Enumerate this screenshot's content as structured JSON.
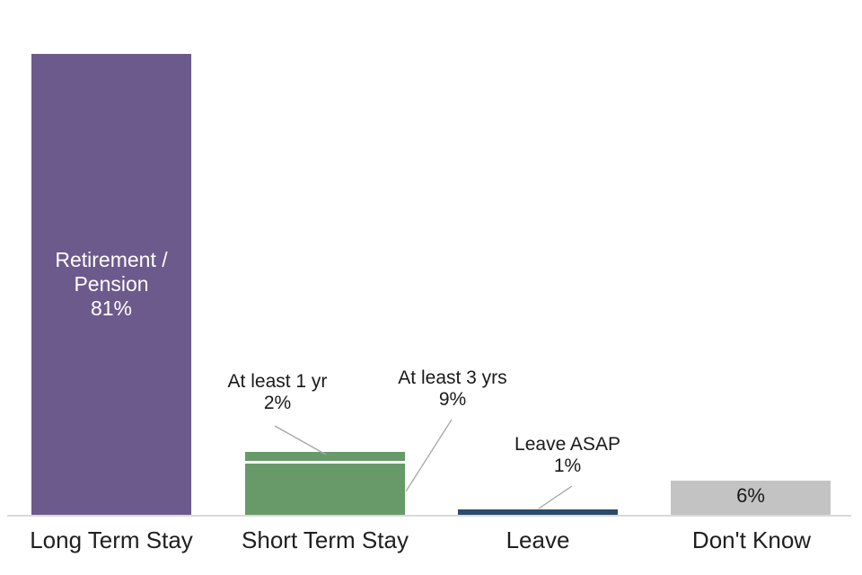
{
  "chart_data": {
    "type": "bar",
    "stacked": true,
    "value_unit": "%",
    "categories": [
      "Long Term Stay",
      "Short Term Stay",
      "Leave",
      "Don't Know"
    ],
    "bars": [
      {
        "category": "Long Term Stay",
        "total": 81,
        "segments": [
          {
            "label": "Retirement / Pension",
            "value": 81,
            "color": "#6d5a8c",
            "label_position": "inside"
          }
        ]
      },
      {
        "category": "Short Term Stay",
        "total": 11,
        "segments": [
          {
            "label": "At least 3 yrs",
            "value": 9,
            "color": "#679a68",
            "label_position": "callout"
          },
          {
            "label": "At least 1 yr",
            "value": 2,
            "color": "#679a68",
            "label_position": "callout"
          }
        ]
      },
      {
        "category": "Leave",
        "total": 1,
        "segments": [
          {
            "label": "Leave ASAP",
            "value": 1,
            "color": "#2c4a6b",
            "label_position": "callout"
          }
        ]
      },
      {
        "category": "Don't Know",
        "total": 6,
        "segments": [
          {
            "label": "Don't Know",
            "value": 6,
            "color": "#c3c3c3",
            "label_position": "inside"
          }
        ]
      }
    ],
    "layout_hints": {
      "gridlines": false,
      "y_axis_visible": false,
      "legend": "none",
      "baseline_color": "#d9d9d9",
      "leader_line_color": "#a6a6a6"
    }
  },
  "labels": {
    "purple_line1": "Retirement /",
    "purple_line2": "Pension",
    "purple_pct": "81%",
    "callout_1yr_line1": "At least 1 yr",
    "callout_1yr_line2": "2%",
    "callout_3yrs_line1": "At least 3 yrs",
    "callout_3yrs_line2": "9%",
    "callout_asap_line1": "Leave ASAP",
    "callout_asap_line2": "1%",
    "gray_pct": "6%"
  }
}
